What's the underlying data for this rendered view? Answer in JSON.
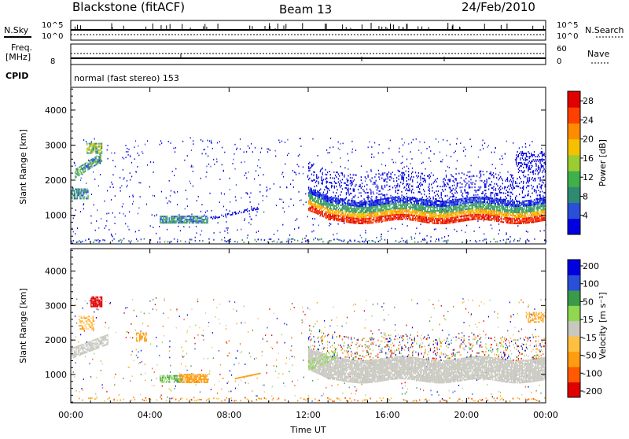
{
  "header": {
    "radar": "Blackstone (fitACF)",
    "beam": "Beam 13",
    "date": "24/Feb/2010"
  },
  "strip": {
    "nsky_label": "N.Sky",
    "nsky_ticks": [
      "10^5",
      "10^0"
    ],
    "nsearch_label": "N.Search",
    "nsearch_ticks": [
      "10^5",
      "10^0"
    ],
    "freq_label": "Freq.",
    "freq_unit": "[MHz]",
    "freq_tick": "8",
    "nave_label": "Nave",
    "nave_ticks": [
      "60",
      "0"
    ],
    "cpid_label": "CPID",
    "cpid_text": "normal (fast stereo) 153"
  },
  "colors": {
    "power_scale": [
      "#0000e0",
      "#2a4fd8",
      "#2f8a74",
      "#3fb04a",
      "#9acd32",
      "#f5c000",
      "#ff8c00",
      "#ff4000",
      "#e00000"
    ],
    "velocity_scale": [
      "#e00000",
      "#ff5a00",
      "#ff9c10",
      "#ffc040",
      "#c8c8c0",
      "#8fd850",
      "#3a9a4a",
      "#2a4fd8",
      "#0000e0"
    ]
  },
  "chart_data": [
    {
      "type": "heatmap",
      "panel": "power",
      "ylabel": "Slant Range [km]",
      "yticks": [
        "1000",
        "2000",
        "3000",
        "4000"
      ],
      "ylim": [
        180,
        4650
      ],
      "xlim": [
        0,
        24
      ],
      "xticks": [
        "00:00",
        "04:00",
        "08:00",
        "12:00",
        "16:00",
        "20:00",
        "00:00"
      ],
      "colorbar": {
        "label": "Power [dB]",
        "ticks": [
          "4",
          "8",
          "12",
          "16",
          "20",
          "24",
          "28"
        ],
        "range": [
          0,
          30
        ]
      },
      "regions": [
        {
          "t": [
            0.0,
            0.7
          ],
          "r": [
            1450,
            1700
          ],
          "level": 2
        },
        {
          "t": [
            0.3,
            1.4
          ],
          "r": [
            2050,
            2550
          ],
          "level": 3
        },
        {
          "t": [
            0.8,
            1.6
          ],
          "r": [
            2750,
            3050
          ],
          "level": 4
        },
        {
          "t": [
            1.0,
            1.3
          ],
          "r": [
            2850,
            3000
          ],
          "level": 5
        },
        {
          "t": [
            4.5,
            6.8
          ],
          "r": [
            760,
            960
          ],
          "level": 3
        },
        {
          "t": [
            12.0,
            24.0
          ],
          "r": [
            800,
            1400
          ],
          "level": 6
        }
      ]
    },
    {
      "type": "heatmap",
      "panel": "velocity",
      "ylabel": "Slant Range [km]",
      "yticks": [
        "1000",
        "2000",
        "3000",
        "4000"
      ],
      "ylim": [
        180,
        4650
      ],
      "xlim": [
        0,
        24
      ],
      "xticks": [
        "00:00",
        "04:00",
        "08:00",
        "12:00",
        "16:00",
        "20:00",
        "00:00"
      ],
      "xlabel": "Time UT",
      "colorbar": {
        "label": "Velocity [m s⁻¹]",
        "ticks": [
          "200",
          "100",
          "50",
          "15",
          "-15",
          "-50",
          "-100",
          "-200"
        ]
      },
      "regions": [
        {
          "t": [
            0.0,
            1.8
          ],
          "r": [
            1450,
            1900
          ],
          "value": 0
        },
        {
          "t": [
            1.0,
            1.6
          ],
          "r": [
            2950,
            3250
          ],
          "value": -250
        },
        {
          "t": [
            5.5,
            6.8
          ],
          "r": [
            750,
            1000
          ],
          "value": -80
        },
        {
          "t": [
            12.0,
            24.0
          ],
          "r": [
            800,
            1400
          ],
          "value": 0
        }
      ]
    }
  ],
  "legend_lines": {
    "nsearch_style": "dotted",
    "nave_style": "dotted"
  }
}
